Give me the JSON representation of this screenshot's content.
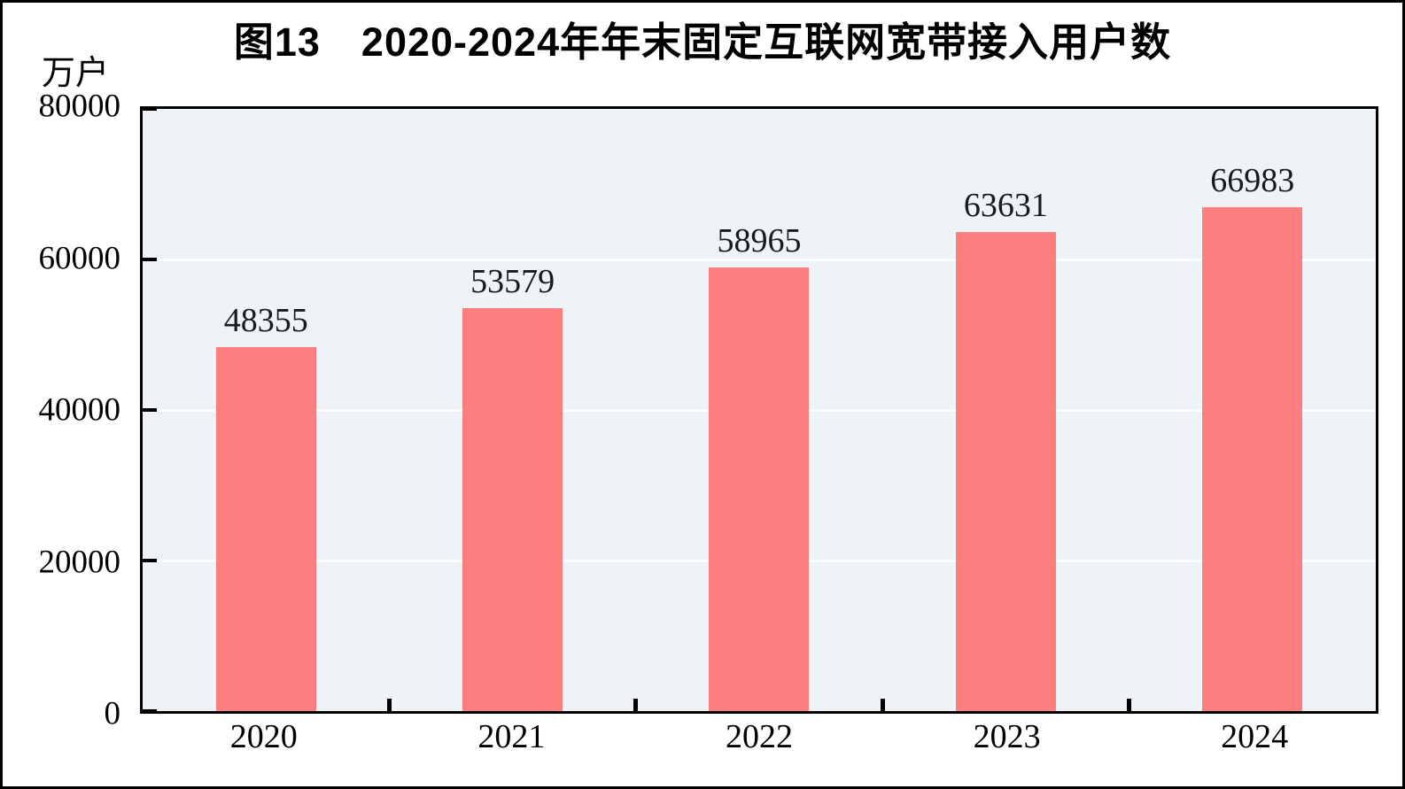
{
  "chart_data": {
    "type": "bar",
    "title": "图13　2020-2024年年末固定互联网宽带接入用户数",
    "ylabel": "万户",
    "categories": [
      "2020",
      "2021",
      "2022",
      "2023",
      "2024"
    ],
    "values": [
      48355,
      53579,
      58965,
      63631,
      66983
    ],
    "ylim": [
      0,
      80000
    ],
    "yticks": [
      0,
      20000,
      40000,
      60000,
      80000
    ],
    "grid": "horizontal",
    "legend": "none",
    "colors": {
      "bar": "#FD7E7E",
      "plot_bg": "#EDF3F6",
      "grid": "#FFFFFF",
      "axis": "#000000",
      "label_text": "#1A1A1A"
    }
  }
}
